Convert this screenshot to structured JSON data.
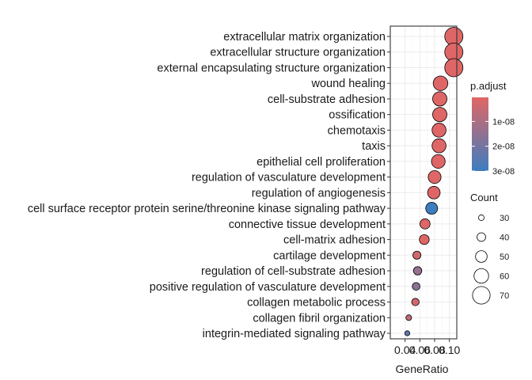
{
  "chart_data": {
    "type": "scatter",
    "title": "",
    "xlabel": "GeneRatio",
    "ylabel": "",
    "xlim": [
      0.02,
      0.11
    ],
    "x_ticks": [
      0.04,
      0.06,
      0.08,
      0.1
    ],
    "x_tick_labels": [
      "0.04",
      "0.06",
      "0.08",
      "0.10"
    ],
    "grid": true,
    "categories": [
      "extracellular matrix organization",
      "extracellular structure organization",
      "external encapsulating structure organization",
      "wound healing",
      "cell-substrate adhesion",
      "ossification",
      "chemotaxis",
      "taxis",
      "epithelial cell proliferation",
      "regulation of vasculature development",
      "regulation of angiogenesis",
      "cell surface receptor protein serine/threonine kinase signaling pathway",
      "connective tissue development",
      "cell-matrix adhesion",
      "cartilage development",
      "regulation of cell-substrate adhesion",
      "positive regulation of vasculature development",
      "collagen metabolic process",
      "collagen fibril organization",
      "integrin-mediated signaling pathway"
    ],
    "gene_ratio": [
      0.106,
      0.106,
      0.106,
      0.088,
      0.087,
      0.087,
      0.086,
      0.086,
      0.085,
      0.08,
      0.079,
      0.076,
      0.067,
      0.066,
      0.056,
      0.057,
      0.055,
      0.054,
      0.045,
      0.043
    ],
    "count": [
      72,
      72,
      72,
      60,
      59,
      59,
      58,
      58,
      57,
      54,
      53,
      51,
      45,
      44,
      38,
      39,
      37,
      36,
      30,
      28
    ],
    "p_adjust": [
      5e-10,
      5e-10,
      5e-10,
      4e-10,
      4e-10,
      4e-10,
      4e-10,
      4e-10,
      4e-10,
      5e-10,
      5e-10,
      3e-08,
      6e-10,
      6e-10,
      3e-09,
      1.4e-08,
      1.6e-08,
      3e-09,
      6e-09,
      2.4e-08
    ],
    "legend_color": {
      "title": "p.adjust",
      "labels": [
        "1e-08",
        "2e-08",
        "3e-08"
      ],
      "values": [
        1e-08,
        2e-08,
        3e-08
      ],
      "low_color": "#e06666",
      "high_color": "#3d7dbf"
    },
    "legend_size": {
      "title": "Count",
      "labels": [
        "30",
        "40",
        "50",
        "60",
        "70"
      ],
      "values": [
        30,
        40,
        50,
        60,
        70
      ]
    }
  }
}
